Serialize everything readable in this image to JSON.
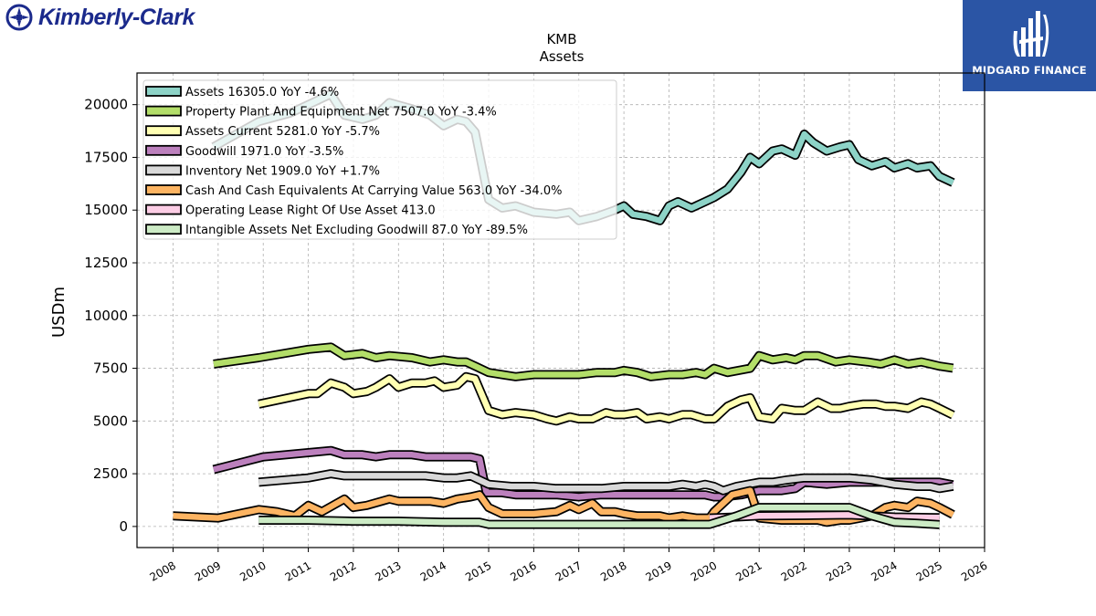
{
  "brand": {
    "company": "Kimberly-Clark",
    "publisher": "MIDGARD FINANCE",
    "accent": "#2b55a5",
    "logo_color": "#1b2a8c"
  },
  "chart_data": {
    "type": "line",
    "title": "KMB",
    "subtitle": "Assets",
    "xlabel": "",
    "ylabel": "USDm",
    "xlim": [
      2007.2,
      2026.0
    ],
    "ylim": [
      -1000,
      21500
    ],
    "x_ticks": [
      2008,
      2009,
      2010,
      2011,
      2012,
      2013,
      2014,
      2015,
      2016,
      2017,
      2018,
      2019,
      2020,
      2021,
      2022,
      2023,
      2024,
      2025,
      2026
    ],
    "y_ticks": [
      0,
      2500,
      5000,
      7500,
      10000,
      12500,
      15000,
      17500,
      20000
    ],
    "grid": true,
    "legend_position": "top-left",
    "series": [
      {
        "name": "Assets",
        "legend": "Assets  16305.0 YoY -4.6%",
        "color": "#8dd3c7",
        "x": [
          2008.9,
          2009.9,
          2010.6,
          2011.0,
          2011.5,
          2011.8,
          2012.2,
          2012.5,
          2012.8,
          2013.3,
          2013.7,
          2014.0,
          2014.3,
          2014.5,
          2014.7,
          2015.0,
          2015.3,
          2015.6,
          2016.0,
          2016.5,
          2016.8,
          2017.0,
          2017.4,
          2017.8,
          2018.0,
          2018.2,
          2018.5,
          2018.8,
          2019.0,
          2019.2,
          2019.5,
          2019.8,
          2020.0,
          2020.3,
          2020.6,
          2020.8,
          2021.0,
          2021.3,
          2021.5,
          2021.8,
          2022.0,
          2022.2,
          2022.5,
          2022.8,
          2023.0,
          2023.2,
          2023.5,
          2023.8,
          2024.0,
          2024.3,
          2024.5,
          2024.8,
          2025.0,
          2025.3
        ],
        "y": [
          18000,
          19200,
          19600,
          20000,
          20500,
          19500,
          19300,
          19500,
          20100,
          19800,
          19500,
          19000,
          19300,
          19200,
          18700,
          15500,
          15100,
          15200,
          14900,
          14800,
          14900,
          14500,
          14700,
          15000,
          15200,
          14800,
          14700,
          14500,
          15200,
          15400,
          15100,
          15400,
          15600,
          16000,
          16800,
          17500,
          17200,
          17800,
          17900,
          17600,
          18600,
          18200,
          17800,
          18000,
          18100,
          17400,
          17100,
          17300,
          17000,
          17200,
          17000,
          17100,
          16600,
          16305
        ]
      },
      {
        "name": "Property Plant And Equipment Net",
        "legend": "Property Plant And Equipment Net  7507.0 YoY -3.4%",
        "color": "#b3de69",
        "x": [
          2008.9,
          2009.9,
          2011.0,
          2011.5,
          2011.8,
          2012.2,
          2012.5,
          2012.8,
          2013.3,
          2013.7,
          2014.0,
          2014.3,
          2014.5,
          2014.7,
          2015.0,
          2015.3,
          2015.6,
          2016.0,
          2016.5,
          2016.8,
          2017.0,
          2017.4,
          2017.8,
          2018.0,
          2018.3,
          2018.6,
          2019.0,
          2019.3,
          2019.6,
          2019.8,
          2020.0,
          2020.3,
          2020.8,
          2021.0,
          2021.3,
          2021.6,
          2021.8,
          2022.0,
          2022.3,
          2022.7,
          2023.0,
          2023.4,
          2023.7,
          2024.0,
          2024.3,
          2024.6,
          2024.8,
          2025.0,
          2025.3
        ],
        "y": [
          7700,
          8000,
          8400,
          8500,
          8100,
          8200,
          8000,
          8100,
          8000,
          7800,
          7900,
          7800,
          7800,
          7600,
          7300,
          7200,
          7100,
          7200,
          7200,
          7200,
          7200,
          7300,
          7300,
          7400,
          7300,
          7100,
          7200,
          7200,
          7300,
          7200,
          7500,
          7300,
          7500,
          8100,
          7900,
          8000,
          7900,
          8100,
          8100,
          7800,
          7900,
          7800,
          7700,
          7900,
          7700,
          7800,
          7700,
          7600,
          7507
        ]
      },
      {
        "name": "Assets Current",
        "legend": "Assets Current  5281.0 YoY -5.7%",
        "color": "#ffffb3",
        "x": [
          2009.9,
          2011.0,
          2011.2,
          2011.5,
          2011.8,
          2012.0,
          2012.3,
          2012.5,
          2012.8,
          2013.0,
          2013.3,
          2013.6,
          2013.8,
          2014.0,
          2014.3,
          2014.5,
          2014.7,
          2015.0,
          2015.3,
          2015.6,
          2016.0,
          2016.3,
          2016.5,
          2016.8,
          2017.0,
          2017.3,
          2017.6,
          2017.8,
          2018.0,
          2018.3,
          2018.5,
          2018.8,
          2019.0,
          2019.3,
          2019.5,
          2019.8,
          2020.0,
          2020.3,
          2020.6,
          2020.8,
          2021.0,
          2021.3,
          2021.5,
          2021.8,
          2022.0,
          2022.3,
          2022.6,
          2022.8,
          2023.0,
          2023.3,
          2023.6,
          2023.8,
          2024.0,
          2024.3,
          2024.6,
          2024.8,
          2025.0,
          2025.3
        ],
        "y": [
          5800,
          6300,
          6300,
          6800,
          6600,
          6300,
          6400,
          6600,
          7000,
          6600,
          6800,
          6800,
          6900,
          6600,
          6700,
          7100,
          7000,
          5500,
          5300,
          5400,
          5300,
          5100,
          5000,
          5200,
          5100,
          5100,
          5400,
          5300,
          5300,
          5400,
          5100,
          5200,
          5100,
          5300,
          5300,
          5100,
          5100,
          5700,
          6000,
          6100,
          5200,
          5100,
          5600,
          5500,
          5500,
          5900,
          5600,
          5600,
          5700,
          5800,
          5800,
          5700,
          5700,
          5600,
          5900,
          5800,
          5600,
          5281
        ]
      },
      {
        "name": "Goodwill",
        "legend": "Goodwill  1971.0 YoY -3.5%",
        "color": "#bc80bd",
        "x": [
          2008.9,
          2010.0,
          2011.0,
          2011.5,
          2011.8,
          2012.2,
          2012.5,
          2012.8,
          2013.3,
          2013.6,
          2014.0,
          2014.3,
          2014.6,
          2014.8,
          2014.95,
          2015.3,
          2015.6,
          2016.0,
          2016.5,
          2017.0,
          2017.5,
          2018.0,
          2018.5,
          2019.0,
          2019.5,
          2019.8,
          2020.0,
          2020.2,
          2020.6,
          2021.0,
          2021.5,
          2021.8,
          2022.0,
          2022.5,
          2023.0,
          2023.5,
          2024.0,
          2024.5,
          2025.0,
          2025.3
        ],
        "y": [
          2700,
          3300,
          3500,
          3600,
          3400,
          3400,
          3300,
          3400,
          3400,
          3300,
          3300,
          3300,
          3300,
          3200,
          1600,
          1600,
          1500,
          1500,
          1500,
          1400,
          1500,
          1500,
          1500,
          1500,
          1500,
          1500,
          1400,
          1400,
          1500,
          1700,
          1700,
          1800,
          2100,
          2000,
          2100,
          2100,
          2100,
          2100,
          2100,
          1971
        ]
      },
      {
        "name": "Inventory Net",
        "legend": "Inventory Net  1909.0 YoY +1.7%",
        "color": "#d9d9d9",
        "x": [
          2009.9,
          2011.0,
          2011.5,
          2011.8,
          2012.2,
          2012.5,
          2012.8,
          2013.3,
          2013.6,
          2014.0,
          2014.3,
          2014.6,
          2014.8,
          2015.0,
          2015.5,
          2016.0,
          2016.5,
          2017.0,
          2017.5,
          2018.0,
          2018.5,
          2019.0,
          2019.3,
          2019.6,
          2019.8,
          2020.0,
          2020.2,
          2020.5,
          2021.0,
          2021.3,
          2021.6,
          2022.0,
          2022.5,
          2023.0,
          2023.5,
          2024.0,
          2024.5,
          2024.8,
          2025.0,
          2025.3
        ],
        "y": [
          2100,
          2300,
          2500,
          2400,
          2400,
          2400,
          2400,
          2400,
          2400,
          2300,
          2300,
          2400,
          2200,
          2000,
          1900,
          1900,
          1800,
          1800,
          1800,
          1900,
          1900,
          1900,
          2000,
          1900,
          2000,
          1900,
          1700,
          1900,
          2100,
          2100,
          2200,
          2300,
          2300,
          2300,
          2200,
          2000,
          1900,
          1900,
          1800,
          1909
        ]
      },
      {
        "name": "Cash And Cash Equivalents At Carrying Value",
        "legend": "Cash And Cash Equivalents At Carrying Value  563.0 YoY -34.0%",
        "color": "#fdb462",
        "x": [
          2008.0,
          2009.0,
          2009.9,
          2010.3,
          2010.7,
          2011.0,
          2011.3,
          2011.8,
          2012.0,
          2012.3,
          2012.8,
          2013.0,
          2013.3,
          2013.7,
          2014.0,
          2014.3,
          2014.6,
          2014.8,
          2015.0,
          2015.3,
          2015.7,
          2016.0,
          2016.5,
          2016.8,
          2017.0,
          2017.3,
          2017.5,
          2017.8,
          2018.0,
          2018.3,
          2018.5,
          2018.8,
          2019.0,
          2019.3,
          2019.6,
          2019.9,
          2020.0,
          2020.4,
          2020.6,
          2020.8,
          2021.0,
          2021.5,
          2021.8,
          2022.0,
          2022.3,
          2022.5,
          2022.8,
          2023.0,
          2023.5,
          2023.8,
          2024.0,
          2024.3,
          2024.5,
          2024.8,
          2025.0,
          2025.3
        ],
        "y": [
          500,
          400,
          800,
          700,
          500,
          1000,
          700,
          1300,
          900,
          1000,
          1300,
          1200,
          1200,
          1200,
          1100,
          1300,
          1400,
          1500,
          900,
          600,
          600,
          600,
          700,
          1000,
          800,
          1100,
          700,
          700,
          600,
          500,
          500,
          500,
          400,
          500,
          400,
          400,
          700,
          1500,
          1600,
          1700,
          400,
          300,
          300,
          300,
          300,
          200,
          300,
          300,
          500,
          900,
          1000,
          900,
          1200,
          1100,
          900,
          563
        ]
      },
      {
        "name": "Operating Lease Right Of Use Asset",
        "legend": "Operating Lease Right Of Use Asset  413.0",
        "color": "#fccde5",
        "x": [
          2019.9,
          2020.5,
          2021.0,
          2022.0,
          2023.0,
          2024.0,
          2025.0
        ],
        "y": [
          400,
          450,
          500,
          520,
          550,
          450,
          413
        ]
      },
      {
        "name": "Intangible Assets Net Excluding Goodwill",
        "legend": "Intangible Assets Net Excluding Goodwill  87.0 YoY -89.5%",
        "color": "#ccebc5",
        "x": [
          2009.9,
          2011.0,
          2012.0,
          2013.0,
          2014.0,
          2014.8,
          2015.0,
          2016.0,
          2017.0,
          2018.0,
          2019.0,
          2019.9,
          2020.5,
          2021.0,
          2022.0,
          2023.0,
          2023.5,
          2024.0,
          2024.5,
          2025.0
        ],
        "y": [
          300,
          300,
          250,
          250,
          200,
          200,
          100,
          100,
          100,
          100,
          100,
          100,
          500,
          900,
          900,
          900,
          500,
          200,
          150,
          87
        ]
      }
    ]
  }
}
